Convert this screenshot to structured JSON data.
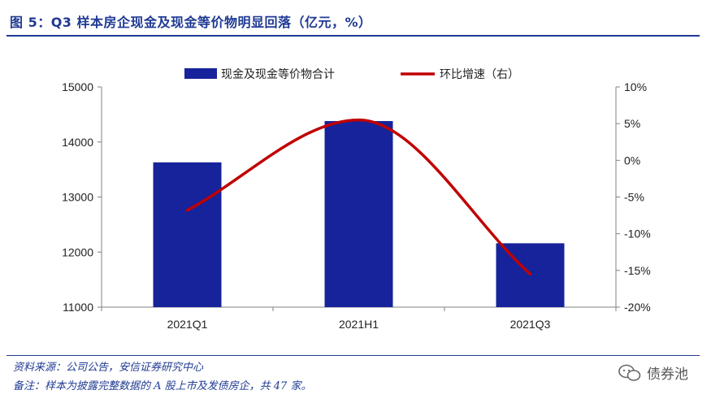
{
  "figure": {
    "title": "图 5：Q3 样本房企现金及现金等价物明显回落（亿元，%）",
    "source": "资料来源：公司公告，安信证券研究中心",
    "note": "备注：样本为披露完整数据的 A 股上市及发债房企，共 47 家。",
    "watermark": "债券池",
    "watermark_icon": "wechat-icon"
  },
  "colors": {
    "title": "#1f3a93",
    "bar": "#17239a",
    "line": "#c00000",
    "axis": "#808080",
    "text": "#222222"
  },
  "chart_data": {
    "type": "bar+line",
    "categories": [
      "2021Q1",
      "2021H1",
      "2021Q3"
    ],
    "series": [
      {
        "name": "现金及现金等价物合计",
        "type": "bar",
        "axis": "left",
        "values": [
          13630,
          14380,
          12160
        ]
      },
      {
        "name": "环比增速（右）",
        "type": "line",
        "axis": "right",
        "smooth": true,
        "values": [
          -6.8,
          5.5,
          -15.5
        ]
      }
    ],
    "y_left": {
      "min": 11000,
      "max": 15000,
      "ticks": [
        11000,
        12000,
        13000,
        14000,
        15000
      ]
    },
    "y_right": {
      "min": -20,
      "max": 10,
      "ticks": [
        -20,
        -15,
        -10,
        -5,
        0,
        5,
        10
      ],
      "tick_labels": [
        "-20%",
        "-15%",
        "-10%",
        "-5%",
        "0%",
        "5%",
        "10%"
      ]
    },
    "legend": [
      "现金及现金等价物合计",
      "环比增速（右）"
    ],
    "legend_position": "top-center",
    "grid": false
  }
}
